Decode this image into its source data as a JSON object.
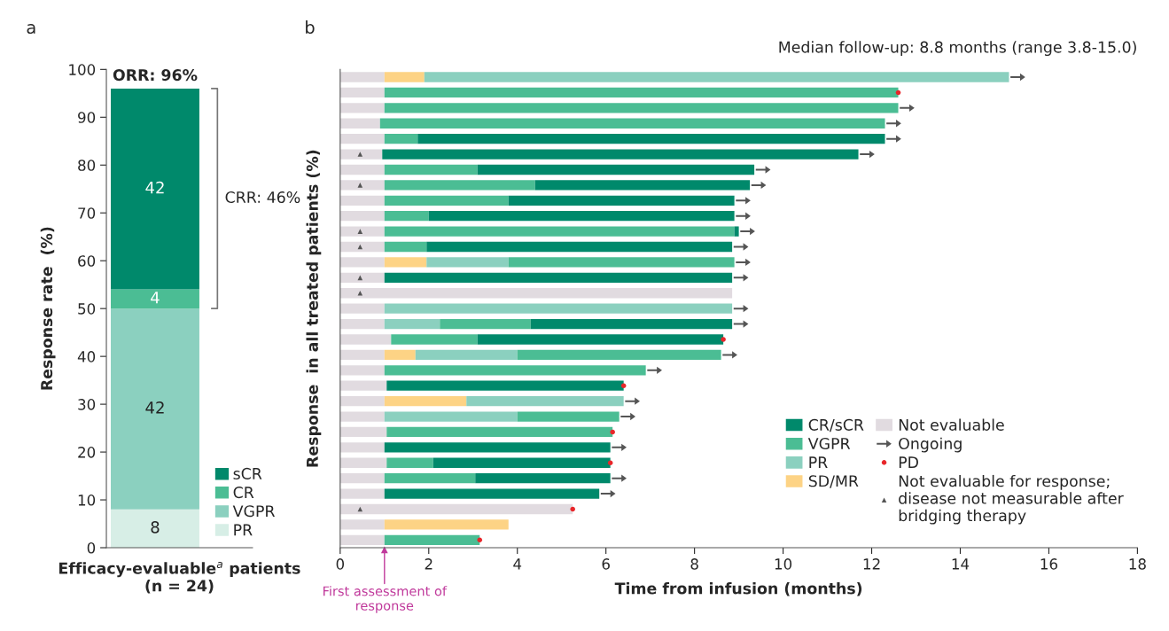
{
  "chart_data": [
    {
      "type": "bar",
      "title": "a",
      "ylabel": "Response rate  (%)",
      "xlabel": "Efficacy-evaluable$^{a}$ patients\n(n = 24)",
      "categories": [
        null
      ],
      "stacked": true,
      "data_labels": true,
      "series": [
        {
          "name": "PR",
          "color": "#d7eee6",
          "values": [
            8
          ]
        },
        {
          "name": "VGPR",
          "color": "#8bd0bf",
          "values": [
            42
          ]
        },
        {
          "name": "CR",
          "color": "#4bbd94",
          "values": [
            4
          ]
        },
        {
          "name": "sCR",
          "color": "#00896b",
          "values": [
            42
          ]
        }
      ],
      "ylim": [
        0,
        100
      ],
      "yticks": [
        0,
        10,
        20,
        30,
        40,
        50,
        60,
        70,
        80,
        90,
        100
      ],
      "legend": "bottom right",
      "annotations": [
        "ORR: 96%",
        "CRR: 46%"
      ]
    },
    {
      "type": "bar",
      "orientation": "horizontal",
      "stacked": true,
      "title": "b",
      "subtitle": "Median follow-up: 8.8 months (range 3.8-15.0)",
      "xlabel": "Time from infusion (months)",
      "ylabel": "Response  in all treated patients (%)",
      "categories": [
        null,
        null,
        null,
        null,
        null,
        null,
        null,
        null,
        null,
        null,
        null,
        null,
        null,
        null,
        null,
        null,
        null,
        null,
        null,
        null,
        null,
        null,
        null,
        null,
        null,
        null,
        null,
        null,
        null,
        null,
        null
      ],
      "series": [
        {
          "name": "Not evaluable",
          "color": "#e1dbe0",
          "values": [
            1.0,
            1.0,
            1.0,
            0.9,
            1.0,
            0.95,
            1.0,
            1.0,
            1.0,
            1.0,
            1.0,
            1.0,
            1.0,
            1.0,
            8.85,
            1.0,
            1.0,
            1.15,
            1.0,
            1.0,
            1.05,
            1.0,
            1.0,
            1.05,
            1.0,
            1.05,
            1.0,
            1.0,
            5.25,
            1.0,
            1.0
          ]
        },
        {
          "name": "SD/MR",
          "color": "#fdd385",
          "values": [
            0.9,
            null,
            null,
            null,
            null,
            null,
            null,
            null,
            null,
            null,
            null,
            null,
            0.95,
            null,
            null,
            null,
            null,
            null,
            0.7,
            null,
            null,
            1.85,
            null,
            null,
            null,
            null,
            null,
            null,
            null,
            2.8,
            null
          ]
        },
        {
          "name": "PR",
          "color": "#8bd0bf",
          "values": [
            13.2,
            null,
            null,
            null,
            null,
            null,
            null,
            null,
            null,
            null,
            null,
            null,
            1.85,
            null,
            null,
            7.85,
            1.25,
            null,
            2.3,
            null,
            null,
            3.55,
            3.0,
            null,
            null,
            null,
            null,
            null,
            null,
            null,
            null
          ]
        },
        {
          "name": "VGPR",
          "color": "#4bbd94",
          "values": [
            null,
            11.6,
            11.6,
            11.4,
            0.75,
            null,
            2.1,
            3.4,
            2.8,
            1.0,
            7.9,
            0.95,
            5.1,
            null,
            null,
            null,
            2.05,
            1.95,
            4.6,
            5.9,
            null,
            null,
            2.3,
            5.1,
            null,
            1.05,
            2.05,
            null,
            null,
            null,
            2.15
          ]
        },
        {
          "name": "CR/sCR",
          "color": "#00896b",
          "values": [
            null,
            null,
            null,
            null,
            10.55,
            10.75,
            6.25,
            4.85,
            5.1,
            6.9,
            0.1,
            6.9,
            null,
            7.85,
            null,
            null,
            4.55,
            5.55,
            null,
            null,
            5.35,
            null,
            null,
            null,
            5.1,
            4.0,
            3.05,
            4.85,
            null,
            null,
            null
          ]
        },
        {
          "name": "Ongoing",
          "type": "scatter",
          "color": "#555555",
          "values": [
            15.3,
            null,
            12.8,
            12.5,
            12.5,
            11.9,
            9.55,
            9.45,
            9.1,
            9.1,
            9.2,
            9.05,
            9.1,
            9.05,
            null,
            9.05,
            9.05,
            null,
            8.8,
            7.1,
            null,
            6.6,
            6.5,
            null,
            6.3,
            null,
            6.3,
            6.05,
            null,
            null,
            null
          ]
        },
        {
          "name": "PD",
          "type": "scatter",
          "marker": "circle",
          "color": "#e8262a",
          "values": [
            null,
            12.6,
            null,
            null,
            null,
            null,
            null,
            null,
            null,
            null,
            null,
            null,
            null,
            null,
            null,
            null,
            null,
            8.65,
            null,
            null,
            6.4,
            null,
            null,
            6.15,
            null,
            6.1,
            null,
            null,
            5.25,
            null,
            3.15
          ]
        },
        {
          "name": "Not evaluable for response;\ndisease not measurable after\nbridging therapy",
          "type": "scatter",
          "marker": "triangle",
          "color": "#555555",
          "values": [
            null,
            null,
            null,
            null,
            null,
            0.45,
            null,
            0.45,
            null,
            null,
            0.45,
            0.45,
            null,
            0.45,
            0.45,
            null,
            null,
            null,
            null,
            null,
            null,
            null,
            null,
            null,
            null,
            null,
            null,
            null,
            0.45,
            null,
            null
          ]
        }
      ],
      "xlim": [
        0,
        18
      ],
      "xticks": [
        0,
        2,
        4,
        6,
        8,
        10,
        12,
        14,
        16,
        18
      ],
      "legend": "bottom right",
      "ref_lines": [
        {
          "axis": "x",
          "value": 1,
          "label": "First assessment of\nresponse",
          "color": "#c0399b"
        }
      ]
    }
  ]
}
